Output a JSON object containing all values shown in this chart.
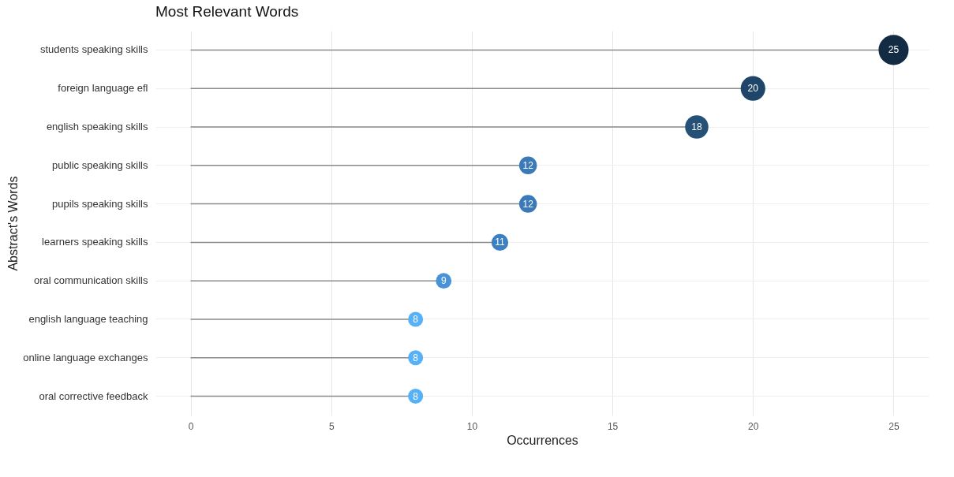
{
  "chart_data": {
    "type": "lollipop",
    "title": "Most Relevant Words",
    "xlabel": "Occurrences",
    "ylabel": "Abstract's Words",
    "orientation": "horizontal",
    "categories": [
      "students speaking skills",
      "foreign language efl",
      "english speaking skills",
      "public speaking skills",
      "pupils speaking skills",
      "learners speaking skills",
      "oral communication skills",
      "english language teaching",
      "online language exchanges",
      "oral corrective feedback"
    ],
    "values": [
      25,
      20,
      18,
      12,
      12,
      11,
      9,
      8,
      8,
      8
    ],
    "sizes": [
      1,
      0.67,
      0.6,
      0.35,
      0.35,
      0.31,
      0.27,
      0.25,
      0.25,
      0.25
    ],
    "colors": [
      "#132b43",
      "#1f4668",
      "#265177",
      "#3a7ab8",
      "#3a7ab8",
      "#3d80c1",
      "#4893d8",
      "#56b1f7",
      "#56b1f7",
      "#56b1f7"
    ],
    "xlim": [
      -1.25,
      26.25
    ],
    "xticks": [
      0,
      5,
      10,
      15,
      20,
      25
    ],
    "grid": true,
    "legend": false,
    "data_labels": true
  }
}
